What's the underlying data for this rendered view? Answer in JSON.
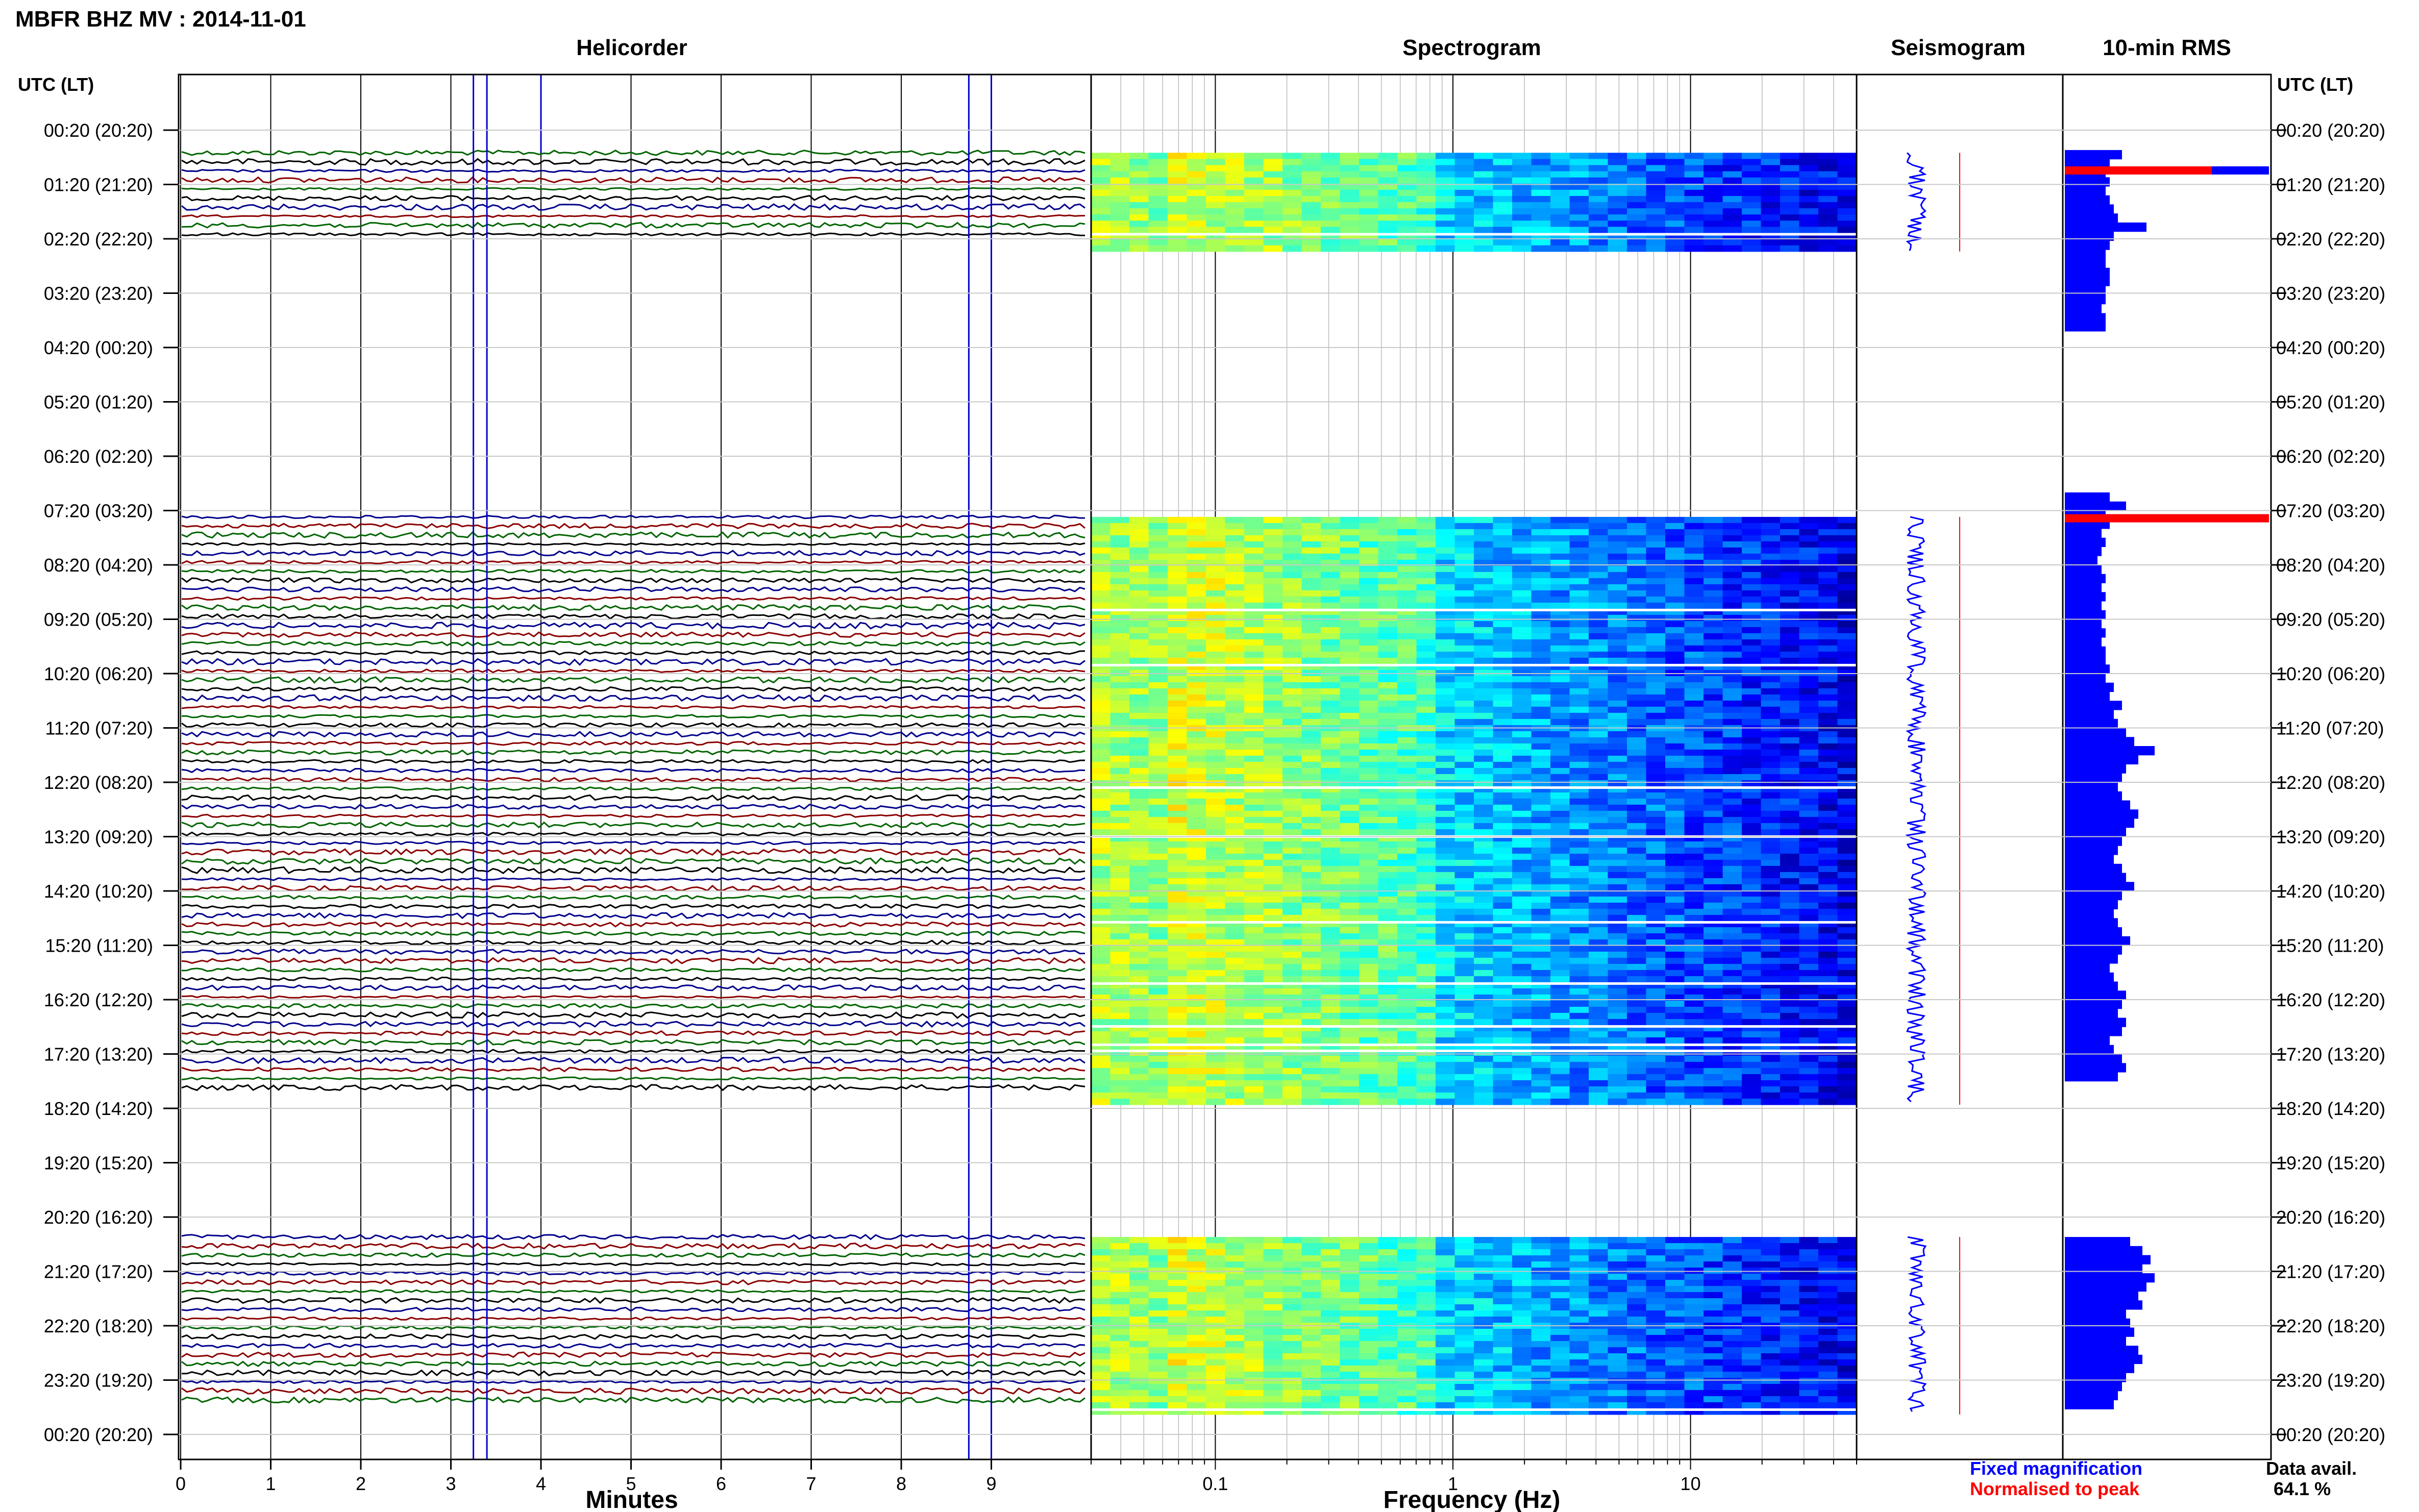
{
  "header": {
    "station_title": "MBFR BHZ MV : 2014-11-01",
    "time_axis_label_left": "UTC (LT)",
    "time_axis_label_right": "UTC (LT)"
  },
  "panels": {
    "helicorder": {
      "title": "Helicorder",
      "xlabel": "Minutes"
    },
    "spectrogram": {
      "title": "Spectrogram",
      "xlabel": "Frequency (Hz)"
    },
    "seismogram": {
      "title": "Seismogram"
    },
    "rms": {
      "title": "10-min RMS"
    }
  },
  "legend": {
    "fixed_label": "Fixed magnification",
    "normalised_label": "Normalised to peak",
    "fixed_color": "#0000ff",
    "normalised_color": "#ff0000"
  },
  "availability": {
    "label": "Data avail.",
    "value": "64.1 %"
  },
  "chart_data": {
    "type": "heatmap",
    "time_ticks": [
      "00:20 (20:20)",
      "01:20 (21:20)",
      "02:20 (22:20)",
      "03:20 (23:20)",
      "04:20 (00:20)",
      "05:20 (01:20)",
      "06:20 (02:20)",
      "07:20 (03:20)",
      "08:20 (04:20)",
      "09:20 (05:20)",
      "10:20 (06:20)",
      "11:20 (07:20)",
      "12:20 (08:20)",
      "13:20 (09:20)",
      "14:20 (10:20)",
      "15:20 (11:20)",
      "16:20 (12:20)",
      "17:20 (13:20)",
      "18:20 (14:20)",
      "19:20 (15:20)",
      "20:20 (16:20)",
      "21:20 (17:20)",
      "22:20 (18:20)",
      "23:20 (19:20)",
      "00:20 (20:20)"
    ],
    "minute_ticks": [
      "0",
      "1",
      "2",
      "3",
      "4",
      "5",
      "6",
      "7",
      "8",
      "9"
    ],
    "minute_range": [
      0,
      10
    ],
    "frequency_ticks": [
      {
        "value": 0.1,
        "label": "0.1"
      },
      {
        "value": 1,
        "label": "1"
      },
      {
        "value": 10,
        "label": "10"
      }
    ],
    "frequency_range": [
      0.03,
      50
    ],
    "frequency_scale": "log",
    "trace_colors": [
      "#006400",
      "#000000",
      "#00008b",
      "#8b0000"
    ],
    "data_segments_utc_hours": [
      [
        0.75,
        2.4
      ],
      [
        7.45,
        18.1
      ],
      [
        20.7,
        23.8
      ]
    ],
    "rms_10min": [
      {
        "start_hour": 0.7,
        "bars": [
          0.28,
          0.22,
          0.2,
          0.22,
          0.2,
          0.22,
          0.24,
          0.26,
          0.4,
          0.24,
          0.22,
          0.2,
          0.2,
          0.22,
          0.22,
          0.2,
          0.2,
          0.18,
          0.2,
          0.2
        ]
      },
      {
        "start_hour": 7.0,
        "bars": [
          0.22,
          0.3,
          0.2,
          0.22,
          0.18,
          0.2,
          0.18,
          0.16,
          0.18,
          0.2,
          0.18,
          0.2,
          0.18,
          0.2,
          0.18,
          0.2,
          0.18,
          0.2,
          0.2,
          0.22,
          0.2,
          0.24,
          0.22,
          0.28,
          0.24,
          0.26,
          0.3,
          0.34,
          0.44,
          0.36,
          0.3,
          0.28,
          0.26,
          0.28,
          0.32,
          0.36,
          0.34,
          0.3,
          0.28,
          0.26,
          0.24,
          0.28,
          0.3,
          0.34,
          0.28,
          0.26,
          0.24,
          0.26,
          0.28,
          0.32,
          0.28,
          0.26,
          0.22,
          0.24,
          0.26,
          0.3,
          0.28,
          0.26,
          0.3,
          0.28,
          0.22,
          0.24,
          0.28,
          0.3,
          0.26
        ]
      },
      {
        "start_hour": 20.7,
        "bars": [
          0.32,
          0.38,
          0.42,
          0.38,
          0.44,
          0.4,
          0.36,
          0.38,
          0.3,
          0.32,
          0.34,
          0.3,
          0.36,
          0.38,
          0.34,
          0.3,
          0.28,
          0.26,
          0.24
        ]
      }
    ],
    "rms_peaks": [
      {
        "hour": 1.0,
        "fixed": 1.0,
        "normalised": 0.72
      },
      {
        "hour": 7.4,
        "fixed": 1.0,
        "normalised": 1.0
      }
    ]
  }
}
